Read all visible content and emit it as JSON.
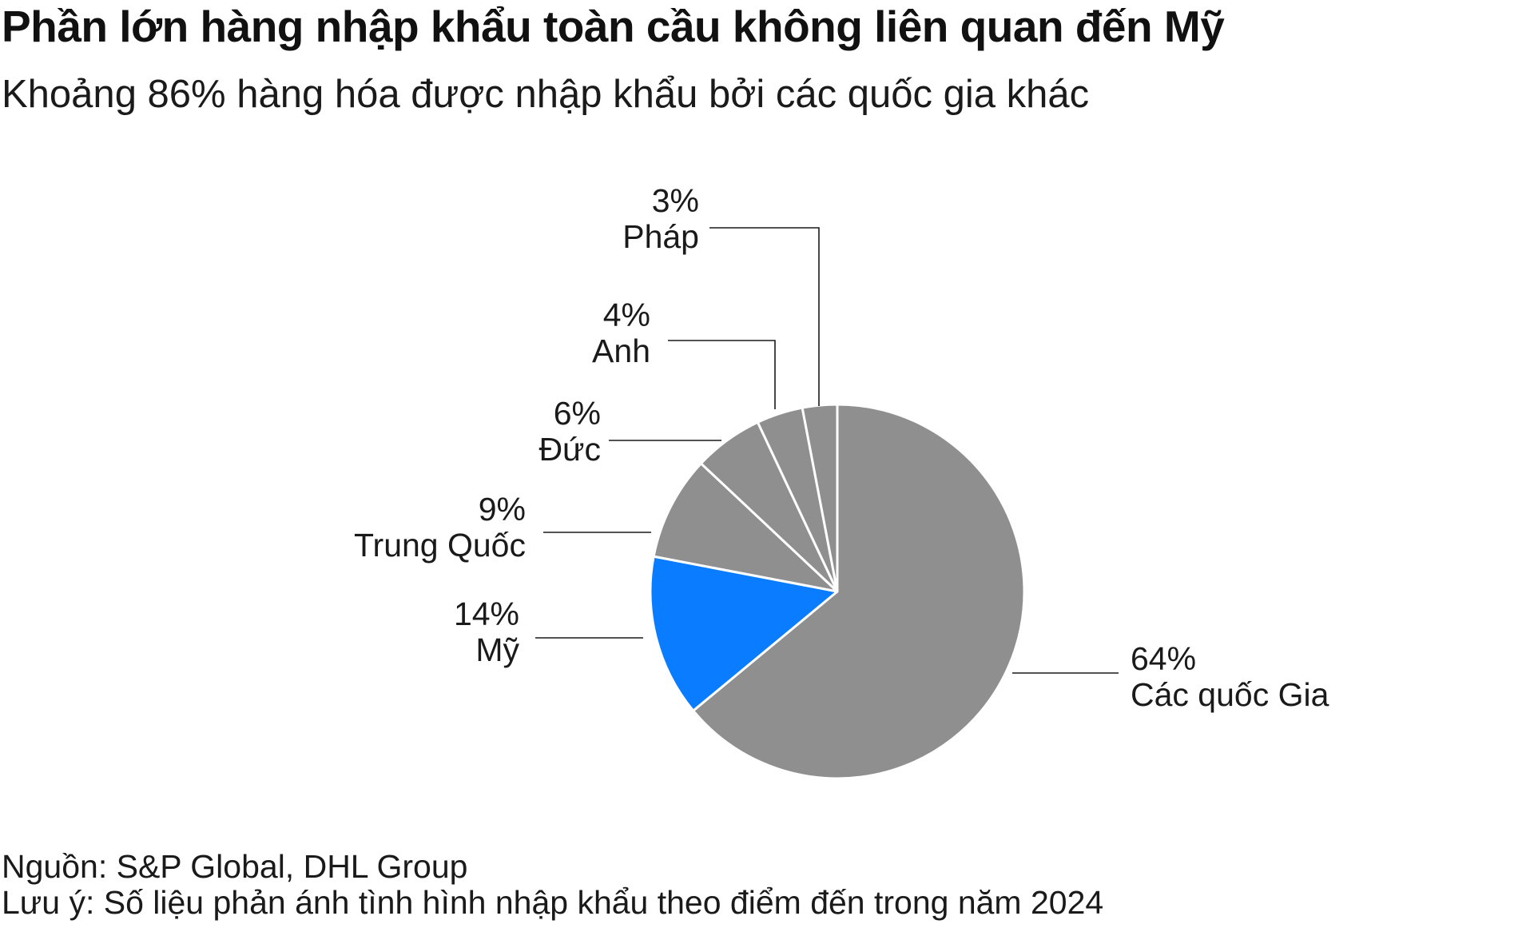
{
  "title": "Phần lớn hàng nhập khẩu toàn cầu không liên quan đến Mỹ",
  "subtitle": "Khoảng 86% hàng hóa được nhập khẩu bởi các quốc gia khác",
  "footer": {
    "source": "Nguồn: S&P Global, DHL Group",
    "note": "Lưu ý: Số liệu phản ánh tình hình nhập khẩu theo điểm đến trong năm 2024"
  },
  "colors": {
    "highlight": "#0a7cff",
    "other": "#8f8f8f",
    "leader": "#1a1a1a",
    "separator": "#ffffff"
  },
  "chart_data": {
    "type": "pie",
    "title": "Phần lớn hàng nhập khẩu toàn cầu không liên quan đến Mỹ",
    "subtitle": "Khoảng 86% hàng hóa được nhập khẩu bởi các quốc gia khác",
    "unit": "%",
    "slices": [
      {
        "label": "Các quốc Gia",
        "value": 64,
        "value_label": "64%",
        "highlight": false
      },
      {
        "label": "Mỹ",
        "value": 14,
        "value_label": "14%",
        "highlight": true
      },
      {
        "label": "Trung Quốc",
        "value": 9,
        "value_label": "9%",
        "highlight": false
      },
      {
        "label": "Đức",
        "value": 6,
        "value_label": "6%",
        "highlight": false
      },
      {
        "label": "Anh",
        "value": 4,
        "value_label": "4%",
        "highlight": false
      },
      {
        "label": "Pháp",
        "value": 3,
        "value_label": "3%",
        "highlight": false
      }
    ]
  }
}
